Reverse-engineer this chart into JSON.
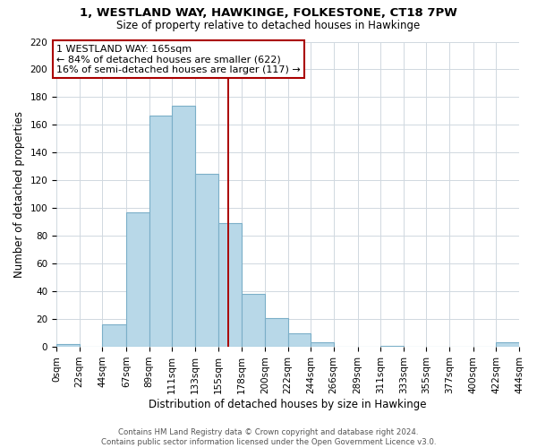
{
  "title": "1, WESTLAND WAY, HAWKINGE, FOLKESTONE, CT18 7PW",
  "subtitle": "Size of property relative to detached houses in Hawkinge",
  "xlabel": "Distribution of detached houses by size in Hawkinge",
  "ylabel": "Number of detached properties",
  "footer_line1": "Contains HM Land Registry data © Crown copyright and database right 2024.",
  "footer_line2": "Contains public sector information licensed under the Open Government Licence v3.0.",
  "bar_edges": [
    0,
    22,
    44,
    67,
    89,
    111,
    133,
    155,
    178,
    200,
    222,
    244,
    266,
    289,
    311,
    333,
    355,
    377,
    400,
    422,
    444
  ],
  "bar_heights": [
    2,
    0,
    16,
    97,
    167,
    174,
    125,
    89,
    38,
    21,
    10,
    3,
    0,
    0,
    1,
    0,
    0,
    0,
    0,
    3
  ],
  "bar_color": "#b8d8e8",
  "bar_edge_color": "#7bafc8",
  "property_line_x": 165,
  "property_line_color": "#aa0000",
  "annotation_title": "1 WESTLAND WAY: 165sqm",
  "annotation_line1": "← 84% of detached houses are smaller (622)",
  "annotation_line2": "16% of semi-detached houses are larger (117) →",
  "annotation_box_facecolor": "#ffffff",
  "annotation_box_edgecolor": "#aa0000",
  "ylim": [
    0,
    220
  ],
  "yticks": [
    0,
    20,
    40,
    60,
    80,
    100,
    120,
    140,
    160,
    180,
    200,
    220
  ],
  "xlim": [
    0,
    444
  ],
  "xtick_labels": [
    "0sqm",
    "22sqm",
    "44sqm",
    "67sqm",
    "89sqm",
    "111sqm",
    "133sqm",
    "155sqm",
    "178sqm",
    "200sqm",
    "222sqm",
    "244sqm",
    "266sqm",
    "289sqm",
    "311sqm",
    "333sqm",
    "355sqm",
    "377sqm",
    "400sqm",
    "422sqm",
    "444sqm"
  ],
  "title_fontsize": 9.5,
  "subtitle_fontsize": 8.5,
  "ylabel_fontsize": 8.5,
  "xlabel_fontsize": 8.5,
  "tick_fontsize": 7.5,
  "footer_fontsize": 6.2,
  "annotation_fontsize": 8.0
}
